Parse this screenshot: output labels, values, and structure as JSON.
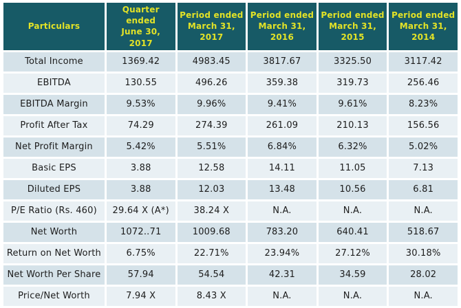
{
  "colors": {
    "header_bg": "#175a66",
    "header_text": "#e2e227",
    "row_odd_bg": "#d5e2e9",
    "row_even_bg": "#e9f0f4",
    "cell_text": "#1c1c1c",
    "separator": "#ffffff"
  },
  "table": {
    "header": [
      {
        "line1": "Particulars",
        "line2": ""
      },
      {
        "line1": "Quarter ended",
        "line2": "June 30, 2017"
      },
      {
        "line1": "Period ended",
        "line2": "March 31, 2017"
      },
      {
        "line1": "Period ended",
        "line2": "March 31, 2016"
      },
      {
        "line1": "Period ended",
        "line2": "March 31, 2015"
      },
      {
        "line1": "Period ended",
        "line2": "March 31, 2014"
      }
    ],
    "rows": [
      {
        "label": "Total Income",
        "values": [
          "1369.42",
          "4983.45",
          "3817.67",
          "3325.50",
          "3117.42"
        ]
      },
      {
        "label": "EBITDA",
        "values": [
          "130.55",
          "496.26",
          "359.38",
          "319.73",
          "256.46"
        ]
      },
      {
        "label": "EBITDA Margin",
        "values": [
          "9.53%",
          "9.96%",
          "9.41%",
          "9.61%",
          "8.23%"
        ]
      },
      {
        "label": "Profit After Tax",
        "values": [
          "74.29",
          "274.39",
          "261.09",
          "210.13",
          "156.56"
        ]
      },
      {
        "label": "Net Profit Margin",
        "values": [
          "5.42%",
          "5.51%",
          "6.84%",
          "6.32%",
          "5.02%"
        ]
      },
      {
        "label": "Basic EPS",
        "values": [
          "3.88",
          "12.58",
          "14.11",
          "11.05",
          "7.13"
        ]
      },
      {
        "label": "Diluted EPS",
        "values": [
          "3.88",
          "12.03",
          "13.48",
          "10.56",
          "6.81"
        ]
      },
      {
        "label": "P/E Ratio (Rs. 460)",
        "values": [
          "29.64 X (A*)",
          "38.24 X",
          "N.A.",
          "N.A.",
          "N.A."
        ]
      },
      {
        "label": "Net Worth",
        "values": [
          "1072..71",
          "1009.68",
          "783.20",
          "640.41",
          "518.67"
        ]
      },
      {
        "label": "Return on Net Worth",
        "values": [
          "6.75%",
          "22.71%",
          "23.94%",
          "27.12%",
          "30.18%"
        ]
      },
      {
        "label": "Net Worth Per Share",
        "values": [
          "57.94",
          "54.54",
          "42.31",
          "34.59",
          "28.02"
        ]
      },
      {
        "label": "Price/Net Worth",
        "values": [
          "7.94 X",
          "8.43 X",
          "N.A.",
          "N.A.",
          "N.A."
        ]
      }
    ]
  }
}
